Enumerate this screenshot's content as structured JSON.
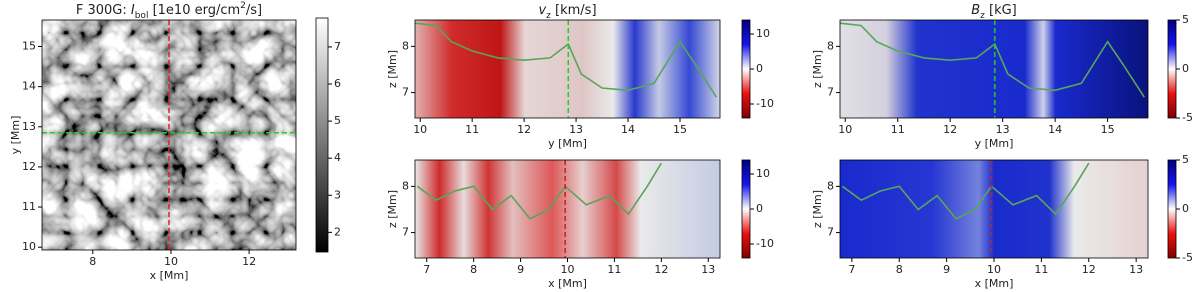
{
  "chart_data": [
    {
      "type": "heatmap",
      "title": [
        "F 300G: ",
        "I",
        "bol",
        " [1e10 erg/cm",
        "2",
        "/s]"
      ],
      "xlabel": "x [Mm]",
      "ylabel": "y [Mm]",
      "xlim": [
        6.7,
        13.2
      ],
      "ylim": [
        9.93,
        15.66
      ],
      "xticks": [
        8,
        10,
        12
      ],
      "yticks": [
        10,
        11,
        12,
        13,
        14,
        15
      ],
      "clim": [
        1.47,
        7.78
      ],
      "cticks": [
        2,
        3,
        4,
        5,
        6,
        7
      ],
      "colormap": "gray",
      "vlines": [
        {
          "value": 9.95,
          "color": "#e02020"
        }
      ],
      "hlines": [
        {
          "value": 12.85,
          "color": "#22d022"
        }
      ]
    },
    {
      "type": "heatmap",
      "title": [
        "v",
        "z",
        " [km/s]"
      ],
      "xlabel": "y [Mm]",
      "ylabel": "z [Mm]",
      "xlim": [
        9.9,
        15.77
      ],
      "ylim": [
        6.45,
        8.57
      ],
      "xticks": [
        10,
        11,
        12,
        13,
        14,
        15
      ],
      "yticks": [
        7,
        8
      ],
      "clim": [
        -14,
        14
      ],
      "cticks": [
        -10,
        0,
        10
      ],
      "colormap": "seismic",
      "vlines": [
        {
          "value": 12.85,
          "color": "#22d022"
        }
      ],
      "contour": {
        "color": "#5aa55a",
        "x": [
          9.9,
          10.3,
          10.6,
          11,
          11.5,
          12,
          12.5,
          12.85,
          13.1,
          13.5,
          14,
          14.5,
          15,
          15.3,
          15.7
        ],
        "values": [
          8.5,
          8.45,
          8.1,
          7.9,
          7.75,
          7.7,
          7.75,
          8.05,
          7.4,
          7.1,
          7.05,
          7.2,
          8.1,
          7.6,
          6.9
        ]
      }
    },
    {
      "type": "heatmap",
      "title": [],
      "xlabel": "x [Mm]",
      "ylabel": "z [Mm]",
      "xlim": [
        6.75,
        13.25
      ],
      "ylim": [
        6.45,
        8.57
      ],
      "xticks": [
        7,
        8,
        9,
        10,
        11,
        12,
        13
      ],
      "yticks": [
        7,
        8
      ],
      "clim": [
        -14,
        14
      ],
      "cticks": [
        -10,
        0,
        10
      ],
      "colormap": "seismic",
      "vlines": [
        {
          "value": 9.95,
          "color": "#c02020"
        }
      ],
      "contour": {
        "color": "#5aa55a",
        "x": [
          6.8,
          7.2,
          7.6,
          8.0,
          8.4,
          8.8,
          9.2,
          9.6,
          9.95,
          10.4,
          10.9,
          11.3,
          11.7,
          12.0
        ],
        "values": [
          8.0,
          7.7,
          7.9,
          8.0,
          7.5,
          7.8,
          7.3,
          7.5,
          8.0,
          7.6,
          7.8,
          7.4,
          8.0,
          8.5
        ]
      }
    },
    {
      "type": "heatmap",
      "title": [
        "B",
        "z",
        " [kG]"
      ],
      "xlabel": "y [Mm]",
      "ylabel": "z [Mm]",
      "xlim": [
        9.9,
        15.77
      ],
      "ylim": [
        6.45,
        8.57
      ],
      "xticks": [
        10,
        11,
        12,
        13,
        14,
        15
      ],
      "yticks": [
        7,
        8
      ],
      "clim": [
        -5,
        5
      ],
      "cticks": [
        -5,
        0,
        5
      ],
      "colormap": "seismic",
      "vlines": [
        {
          "value": 12.85,
          "color": "#22d022"
        }
      ],
      "contour": {
        "color": "#5aa55a",
        "x": [
          9.9,
          10.3,
          10.6,
          11,
          11.5,
          12,
          12.5,
          12.85,
          13.1,
          13.5,
          14,
          14.5,
          15,
          15.3,
          15.7
        ],
        "values": [
          8.5,
          8.45,
          8.1,
          7.9,
          7.75,
          7.7,
          7.75,
          8.05,
          7.4,
          7.1,
          7.05,
          7.2,
          8.1,
          7.6,
          6.9
        ]
      }
    },
    {
      "type": "heatmap",
      "title": [],
      "xlabel": "x [Mm]",
      "ylabel": "z [Mm]",
      "xlim": [
        6.75,
        13.25
      ],
      "ylim": [
        6.45,
        8.57
      ],
      "xticks": [
        7,
        8,
        9,
        10,
        11,
        12,
        13
      ],
      "yticks": [
        7,
        8
      ],
      "clim": [
        -5,
        5
      ],
      "cticks": [
        -5,
        0,
        5
      ],
      "colormap": "seismic",
      "vlines": [
        {
          "value": 9.95,
          "color": "#c02020"
        }
      ],
      "contour": {
        "color": "#5aa55a",
        "x": [
          6.8,
          7.2,
          7.6,
          8.0,
          8.4,
          8.8,
          9.2,
          9.6,
          9.95,
          10.4,
          10.9,
          11.3,
          11.7,
          12.0
        ],
        "values": [
          8.0,
          7.7,
          7.9,
          8.0,
          7.5,
          7.8,
          7.3,
          7.5,
          8.0,
          7.6,
          7.8,
          7.4,
          8.0,
          8.5
        ]
      }
    }
  ]
}
